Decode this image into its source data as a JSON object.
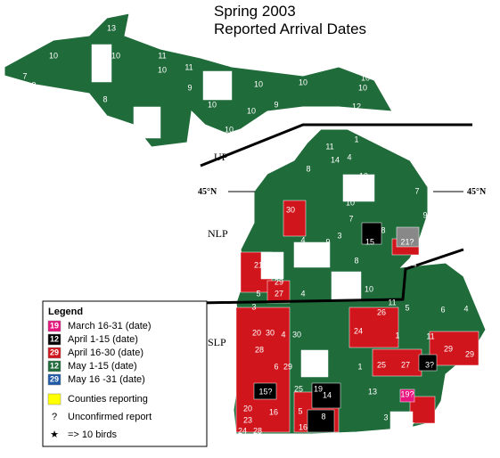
{
  "title": "Spring 2003",
  "subtitle": "Reported Arrival Dates",
  "regions": [
    "UP",
    "NLP",
    "SLP"
  ],
  "latitude": [
    "45°N",
    "45°N"
  ],
  "legend": {
    "title": "Legend",
    "items": [
      {
        "chip": "19",
        "text": "March 16-31 (date)",
        "color": "#e8157f"
      },
      {
        "chip": "12",
        "text": "April 1-15 (date)",
        "color": "#000000"
      },
      {
        "chip": "29",
        "text": "April 16-30 (date)",
        "color": "#d0151c"
      },
      {
        "chip": "12",
        "text": "May 1-15 (date)",
        "color": "#1f6b3a"
      },
      {
        "chip": "29",
        "text": "May 16 -31 (date)",
        "color": "#1f5aa8"
      },
      {
        "text": "Counties reporting",
        "color": "#ffff00"
      },
      {
        "symbol": "?",
        "text": "Unconfirmed report"
      },
      {
        "symbol": "★",
        "text": "=> 10 birds"
      }
    ]
  },
  "county_labels": [
    "13",
    "10",
    "7",
    "9",
    "10",
    "11",
    "10",
    "11",
    "9",
    "8",
    "10",
    "10",
    "10",
    "10",
    "9",
    "10",
    "10",
    "9",
    "12",
    "13",
    "10",
    "1",
    "11",
    "4",
    "7",
    "14",
    "8",
    "10",
    "7",
    "30",
    "10",
    "7",
    "8",
    "15",
    "21?",
    "9",
    "4",
    "9",
    "3",
    "21",
    "8",
    "29",
    "27",
    "5",
    "4",
    "10",
    "4",
    "3",
    "20",
    "30",
    "4",
    "30",
    "24",
    "11",
    "26",
    "5",
    "6",
    "4",
    "1",
    "11",
    "29",
    "29",
    "28",
    "6",
    "29",
    "4",
    "1",
    "25",
    "27",
    "3?",
    "15?",
    "25",
    "19",
    "14",
    "13",
    "19?",
    "20",
    "16",
    "5",
    "16",
    "8",
    "3",
    "5",
    "27",
    "23",
    "24",
    "28"
  ]
}
